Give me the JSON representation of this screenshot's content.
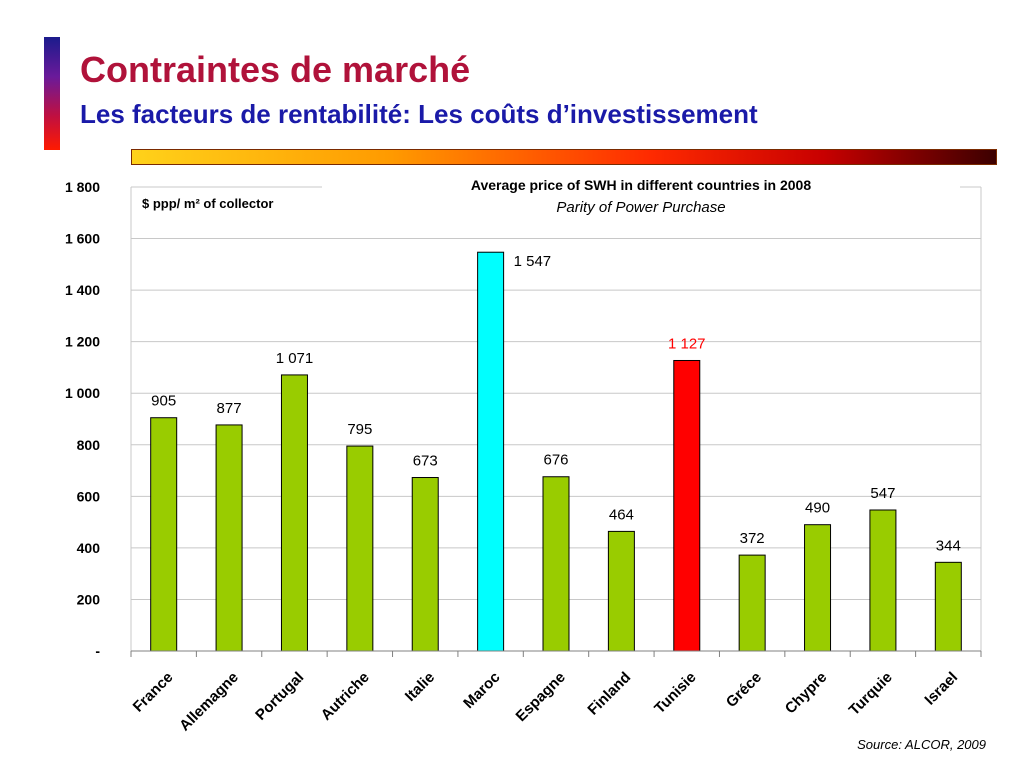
{
  "slide": {
    "title": "Contraintes de marché",
    "subtitle": "Les facteurs de rentabilité: Les coûts d’investissement",
    "source": "Source: ALCOR, 2009"
  },
  "colors": {
    "default_bar": "#99cc00",
    "maroc_bar": "#00ffff",
    "tunisie_bar": "#ff0000",
    "tunisie_label": "#ff0000"
  },
  "chart_data": {
    "type": "bar",
    "title": "Average price of SWH in different countries in 2008",
    "subtitle": "Parity of Power Purchase",
    "ylabel": "$ ppp/ m² of collector",
    "xlabel": "",
    "categories": [
      "France",
      "Allemagne",
      "Portugal",
      "Autriche",
      "Italie",
      "Maroc",
      "Espagne",
      "Finland",
      "Tunisie",
      "Gréce",
      "Chypre",
      "Turquie",
      "Israel"
    ],
    "values": [
      905,
      877,
      1071,
      795,
      673,
      1547,
      676,
      464,
      1127,
      372,
      490,
      547,
      344
    ],
    "data_labels": [
      "905",
      "877",
      "1 071",
      "795",
      "673",
      "1 547",
      "676",
      "464",
      "1 127",
      "372",
      "490",
      "547",
      "344"
    ],
    "highlight": {
      "Maroc": "maroc_bar",
      "Tunisie": "tunisie_bar"
    },
    "ylim": [
      0,
      1800
    ],
    "yticks": [
      0,
      200,
      400,
      600,
      800,
      1000,
      1200,
      1400,
      1600,
      1800
    ],
    "ytick_labels": [
      "-",
      "200",
      "400",
      "600",
      "800",
      "1 000",
      "1 200",
      "1 400",
      "1 600",
      "1 800"
    ],
    "grid": true,
    "legend": "none"
  }
}
